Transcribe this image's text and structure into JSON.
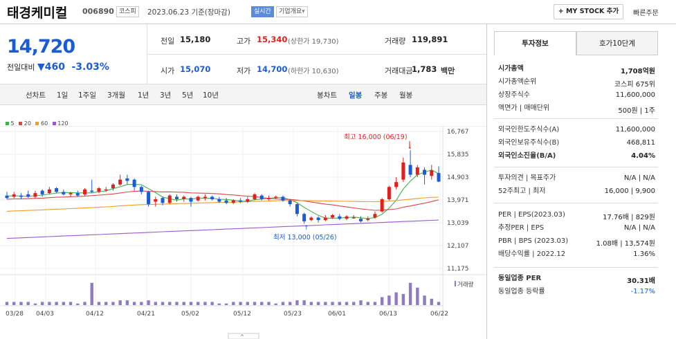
{
  "header": {
    "name": "태경케미컬",
    "code": "006890",
    "market": "코스피",
    "date": "2023.06.23 기준(장마감)",
    "realtime": "실시간",
    "overview": "기업개요",
    "overview_arrow": "▾",
    "mystock": "+ MY STOCK 추가",
    "fast_order": "빠른주문"
  },
  "quote": {
    "price": "14,720",
    "change_label": "전일대비",
    "change_arrow": "▼",
    "change": "460",
    "change_pct": "-3.03%",
    "prev_label": "전일",
    "prev": "15,180",
    "high_label": "고가",
    "high": "15,340",
    "upper_limit": "(상한가 19,730)",
    "volume_label": "거래량",
    "volume": "119,891",
    "open_label": "시가",
    "open": "15,070",
    "low_label": "저가",
    "low": "14,700",
    "lower_limit": "(하한가 10,630)",
    "amount_label": "거래대금",
    "amount": "1,783",
    "amount_unit": "백만"
  },
  "chart_tabs": {
    "line": [
      "선차트",
      "1일",
      "1주일",
      "3개월",
      "1년",
      "3년",
      "5년",
      "10년"
    ],
    "candle": [
      "봉차트",
      "일봉",
      "주봉",
      "월봉"
    ],
    "active": "일봉"
  },
  "legend": [
    {
      "label": "5",
      "color": "#3cb34a"
    },
    {
      "label": "20",
      "color": "#e04646"
    },
    {
      "label": "60",
      "color": "#f09b2d"
    },
    {
      "label": "120",
      "color": "#9b59d0"
    }
  ],
  "annotations": {
    "high": "최고 16,000 (06/19)",
    "low": "최저 13,000 (05/26)",
    "volume_label": "거래량"
  },
  "chart_data": {
    "type": "candlestick",
    "title": "",
    "y_ticks": [
      16767,
      15835,
      14903,
      13971,
      13039,
      12107,
      11175
    ],
    "x_ticks": [
      "03/28",
      "04/03",
      "04/12",
      "04/21",
      "05/02",
      "05/12",
      "05/23",
      "06/01",
      "06/13",
      "06/22"
    ],
    "high": {
      "value": 16000,
      "date": "06/19"
    },
    "low": {
      "value": 13000,
      "date": "05/26"
    },
    "last": {
      "open": 15070,
      "high": 15340,
      "low": 14700,
      "close": 14720
    }
  },
  "right": {
    "tabs": [
      "투자정보",
      "호가10단계"
    ],
    "rows1": [
      {
        "l": "시가총액",
        "v": "1,708억원"
      },
      {
        "l": "시가총액순위",
        "v": "코스피 675위"
      },
      {
        "l": "상장주식수",
        "v": "11,600,000"
      },
      {
        "l": "액면가 | 매매단위",
        "v": "500원 | 1주"
      }
    ],
    "rows2": [
      {
        "l": "외국인한도주식수(A)",
        "v": "11,600,000"
      },
      {
        "l": "외국인보유주식수(B)",
        "v": "468,811"
      },
      {
        "l": "외국인소진율(B/A)",
        "v": "4.04%"
      }
    ],
    "rows3": [
      {
        "l": "투자의견 | 목표주가",
        "v": "N/A | N/A"
      },
      {
        "l": "52주최고 | 최저",
        "v": "16,000 | 9,900"
      }
    ],
    "rows4": [
      {
        "l": "PER | EPS(2023.03)",
        "v": "17.76배 | 829원"
      },
      {
        "l": "추정PER | EPS",
        "v": "N/A | N/A"
      },
      {
        "l": "PBR | BPS (2023.03)",
        "v": "1.08배 | 13,574원"
      },
      {
        "l": "배당수익률 | 2022.12",
        "v": "1.36%"
      }
    ],
    "rows5": [
      {
        "l": "동일업종 PER",
        "v": "30.31배"
      },
      {
        "l": "동일업종 등락률",
        "v": "-1.17%"
      }
    ]
  }
}
